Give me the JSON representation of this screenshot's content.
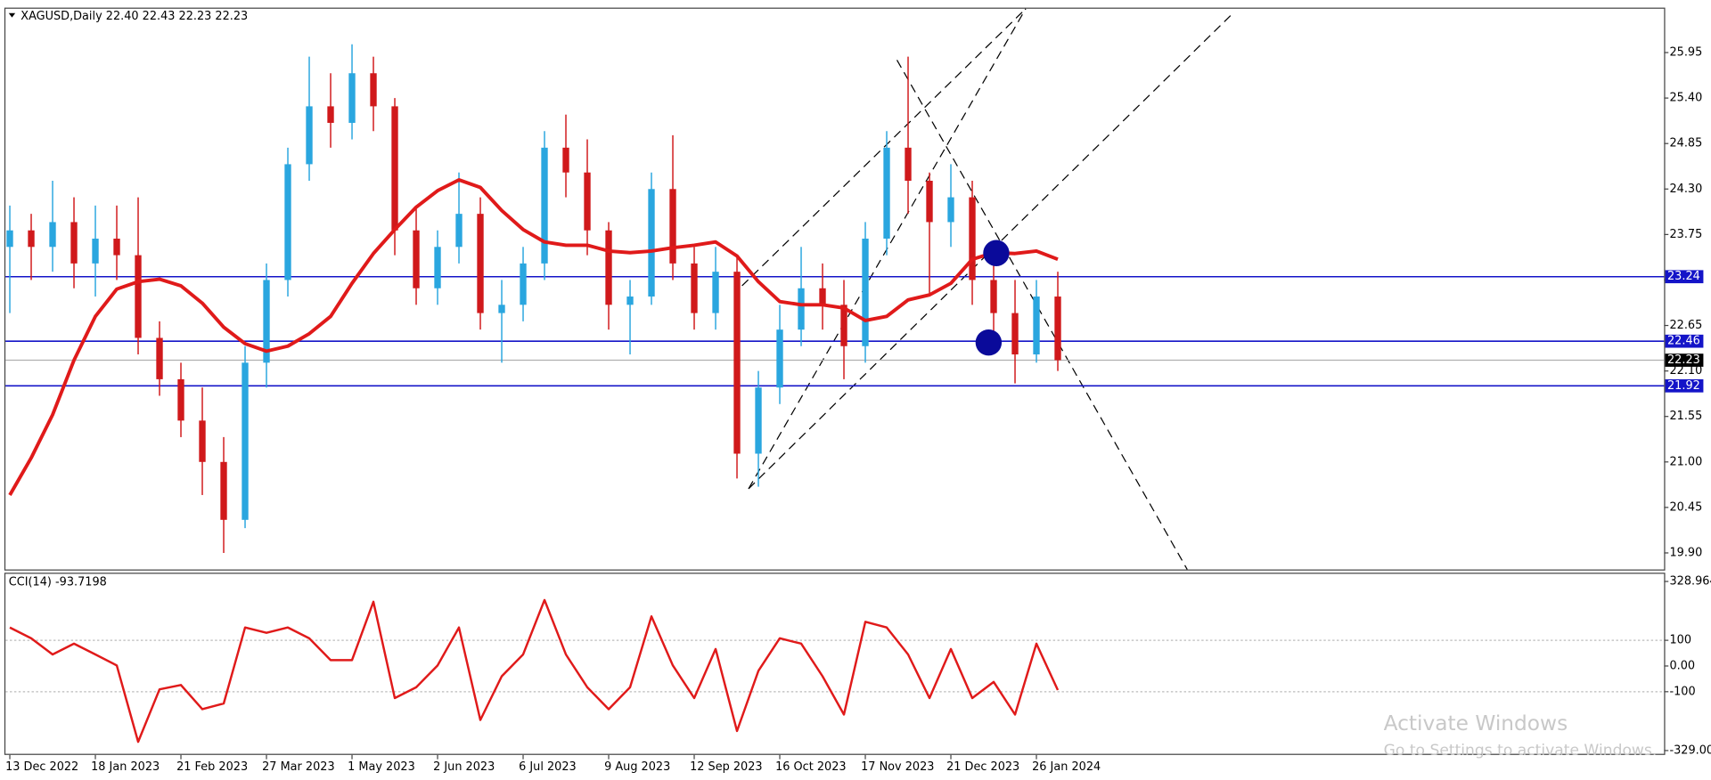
{
  "chart_data": [
    {
      "type": "candlestick",
      "title": "XAGUSD,Daily  22.40 22.43 22.23 22.23",
      "categories": [
        "13 Dec 2022",
        null,
        null,
        null,
        "18 Jan 2023",
        null,
        null,
        null,
        "21 Feb 2023",
        null,
        null,
        null,
        "27 Mar 2023",
        null,
        null,
        null,
        "1 May 2023",
        null,
        null,
        null,
        "2 Jun 2023",
        null,
        null,
        null,
        "6 Jul 2023",
        null,
        null,
        null,
        "9 Aug 2023",
        null,
        null,
        null,
        "12 Sep 2023",
        null,
        null,
        null,
        "16 Oct 2023",
        null,
        null,
        null,
        "17 Nov 2023",
        null,
        null,
        null,
        "21 Dec 2023",
        null,
        null,
        null,
        "26 Jan 2024",
        null
      ],
      "open": [
        23.6,
        23.8,
        23.6,
        23.9,
        23.4,
        23.7,
        23.5,
        22.5,
        22.0,
        21.5,
        21.0,
        20.3,
        22.2,
        23.2,
        24.6,
        25.3,
        25.1,
        25.7,
        25.3,
        23.8,
        23.1,
        23.6,
        24.0,
        22.8,
        22.9,
        23.4,
        24.8,
        24.5,
        23.8,
        22.9,
        23.0,
        24.3,
        23.4,
        22.8,
        23.3,
        21.1,
        21.9,
        22.6,
        23.1,
        22.9,
        22.4,
        23.7,
        24.8,
        24.4,
        23.9,
        24.2,
        23.2,
        22.8,
        22.3,
        23.0
      ],
      "high": [
        24.1,
        24.0,
        24.4,
        24.2,
        24.1,
        24.1,
        24.2,
        22.7,
        22.2,
        21.9,
        21.3,
        22.4,
        23.4,
        24.8,
        25.9,
        25.7,
        26.05,
        25.9,
        25.4,
        24.1,
        23.8,
        24.5,
        24.2,
        23.2,
        23.6,
        25.0,
        25.2,
        24.9,
        23.9,
        23.2,
        24.5,
        24.95,
        23.6,
        23.6,
        23.5,
        22.1,
        22.9,
        23.6,
        23.4,
        23.2,
        23.9,
        25.0,
        25.9,
        24.5,
        24.6,
        24.4,
        23.4,
        23.2,
        23.2,
        23.3
      ],
      "low": [
        22.8,
        23.2,
        23.3,
        23.1,
        23.0,
        23.2,
        22.3,
        21.8,
        21.3,
        20.6,
        19.9,
        20.2,
        21.9,
        23.0,
        24.4,
        24.8,
        24.9,
        25.0,
        23.5,
        22.9,
        22.9,
        23.4,
        22.6,
        22.2,
        22.7,
        23.2,
        24.2,
        23.5,
        22.6,
        22.3,
        22.9,
        23.2,
        22.6,
        22.6,
        20.8,
        20.7,
        21.7,
        22.4,
        22.6,
        22.0,
        22.2,
        23.5,
        24.0,
        23.0,
        23.6,
        22.9,
        22.4,
        21.95,
        22.2,
        22.1
      ],
      "close": [
        23.8,
        23.6,
        23.9,
        23.4,
        23.7,
        23.5,
        22.5,
        22.0,
        21.5,
        21.0,
        20.3,
        22.2,
        23.2,
        24.6,
        25.3,
        25.1,
        25.7,
        25.3,
        23.8,
        23.1,
        23.6,
        24.0,
        22.8,
        22.9,
        23.4,
        24.8,
        24.5,
        23.8,
        22.9,
        23.0,
        24.3,
        23.4,
        22.8,
        23.3,
        21.1,
        21.9,
        22.6,
        23.1,
        22.9,
        22.4,
        23.7,
        24.8,
        24.4,
        23.9,
        24.2,
        23.2,
        22.8,
        22.3,
        23.0,
        22.23
      ],
      "up_color": "#2aa6df",
      "down_color": "#d0191b",
      "ma_color": "#e01a1a",
      "ma_values": [
        20.6,
        21.05,
        21.57,
        22.23,
        22.76,
        23.09,
        23.18,
        23.21,
        23.13,
        22.92,
        22.63,
        22.43,
        22.34,
        22.4,
        22.55,
        22.76,
        23.16,
        23.52,
        23.81,
        24.08,
        24.28,
        24.41,
        24.32,
        24.04,
        23.81,
        23.66,
        23.62,
        23.62,
        23.55,
        23.53,
        23.55,
        23.59,
        23.62,
        23.66,
        23.49,
        23.18,
        22.94,
        22.9,
        22.9,
        22.86,
        22.71,
        22.76,
        22.96,
        23.02,
        23.16,
        23.45,
        23.53,
        23.52,
        23.55,
        23.45
      ],
      "levels": [
        23.24,
        22.46,
        21.92
      ],
      "level_color": "#1414c8",
      "last_price": 22.23,
      "ylim": [
        19.7,
        26.48
      ],
      "yticks": [
        25.95,
        {
          "value": 25.4,
          "label": "25.40"
        },
        24.85,
        {
          "value": 24.3,
          "label": "24.30"
        },
        23.75,
        {
          "value": 23.2,
          "label": "23.20"
        },
        22.65,
        {
          "value": 22.1,
          "label": "22.10"
        },
        21.55,
        {
          "value": 21.0,
          "label": "21.00"
        },
        20.45,
        {
          "value": 19.9,
          "label": "19.90"
        }
      ]
    },
    {
      "type": "line",
      "title": "CCI(14) -93.7198",
      "series": [
        {
          "color": "#e01a1a",
          "values": [
            150,
            108,
            45,
            87,
            45,
            2,
            -295,
            -91,
            -74,
            -168,
            -146,
            150,
            129,
            150,
            108,
            23,
            23,
            250,
            -125,
            -83,
            2,
            150,
            -210,
            -40,
            45,
            257,
            45,
            -83,
            -168,
            -83,
            193,
            2,
            -125,
            66,
            -253,
            -19,
            108,
            87,
            -40,
            -189,
            172,
            150,
            45,
            -125,
            66,
            -125,
            -62,
            -189,
            87,
            -93.72
          ]
        }
      ],
      "levels": [
        100,
        -100
      ],
      "ylim": [
        -329,
        328.964
      ],
      "yticks": [
        328.964,
        100,
        {
          "value": 0,
          "label": "0.00"
        },
        -100,
        {
          "value": -329,
          "label": "-329.000"
        }
      ]
    }
  ],
  "watermark": {
    "title": "Activate Windows",
    "subtitle": "Go to Settings to activate Windows."
  }
}
